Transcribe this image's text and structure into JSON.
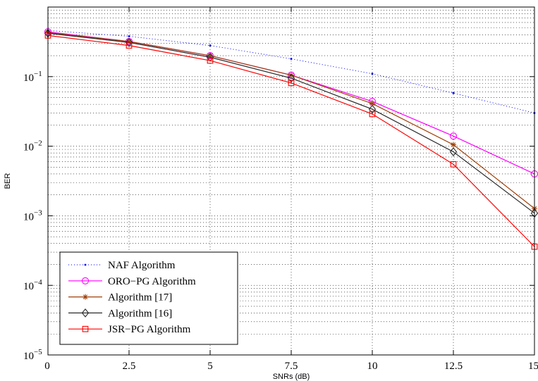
{
  "chart_data": {
    "type": "line",
    "title": "",
    "xlabel": "SNRs (dB)",
    "ylabel": "BER",
    "y_scale": "log",
    "xlim": [
      0,
      15
    ],
    "ylim": [
      1e-05,
      1
    ],
    "x_ticks": [
      "0",
      "2.5",
      "5",
      "7.5",
      "10",
      "12.5",
      "15"
    ],
    "y_ticks": [
      {
        "base": "10",
        "exp": "−1",
        "value": 0.1
      },
      {
        "base": "10",
        "exp": "−2",
        "value": 0.01
      },
      {
        "base": "10",
        "exp": "−3",
        "value": 0.001
      },
      {
        "base": "10",
        "exp": "−4",
        "value": 0.0001
      },
      {
        "base": "10",
        "exp": "−5",
        "value": 1e-05
      }
    ],
    "grid": true,
    "legend_position": "bottom-left",
    "x": [
      0,
      2.5,
      5,
      7.5,
      10,
      12.5,
      15
    ],
    "series": [
      {
        "name": "NAF Algorithm",
        "color": "#0000ff",
        "marker": "dot",
        "line": "dotted",
        "values": [
          0.46,
          0.38,
          0.28,
          0.18,
          0.11,
          0.058,
          0.03
        ]
      },
      {
        "name": "ORO−PG Algorithm",
        "color": "#ff00ff",
        "marker": "circle",
        "line": "solid",
        "values": [
          0.44,
          0.32,
          0.2,
          0.105,
          0.044,
          0.014,
          0.004
        ]
      },
      {
        "name": "Algorithm [17]",
        "color": "#a0400a",
        "marker": "star",
        "line": "solid",
        "values": [
          0.43,
          0.32,
          0.2,
          0.105,
          0.041,
          0.0105,
          0.00127
        ]
      },
      {
        "name": "Algorithm [16]",
        "color": "#2b2b2b",
        "marker": "diamond",
        "line": "solid",
        "values": [
          0.42,
          0.31,
          0.19,
          0.095,
          0.034,
          0.0083,
          0.00109
        ]
      },
      {
        "name": "JSR−PG Algorithm",
        "color": "#ff0000",
        "marker": "square",
        "line": "solid",
        "values": [
          0.39,
          0.28,
          0.17,
          0.081,
          0.029,
          0.0055,
          0.00036
        ]
      }
    ]
  }
}
